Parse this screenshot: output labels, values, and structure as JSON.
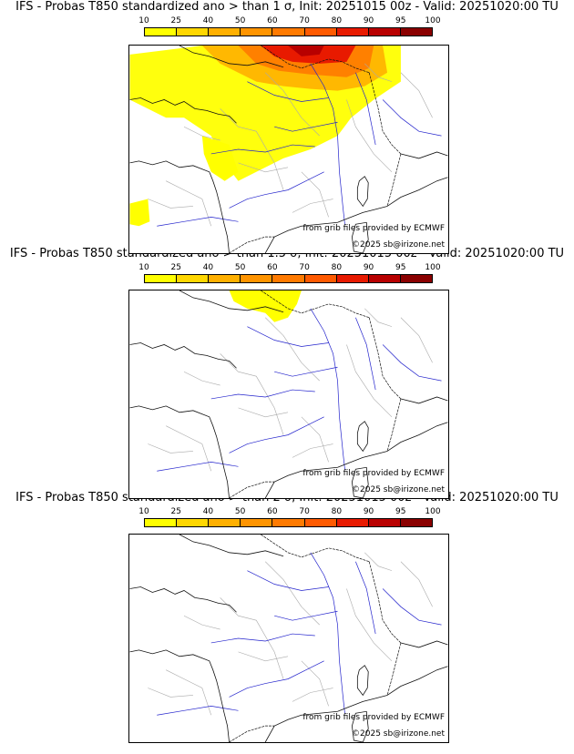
{
  "panels": [
    {
      "title": "IFS - Probas T850  standardized ano > than 1 σ, Init: 20251015 00z - Valid: 20251020:00 TU",
      "source": "from grib files provided by ECMWF",
      "copyright": "©2025 sb@irizone.net"
    },
    {
      "title": "IFS - Probas T850  standardized ano > than 1.5 σ, Init: 20251015 00z - Valid: 20251020:00 TU",
      "source": "from grib files provided by ECMWF",
      "copyright": "©2025 sb@irizone.net"
    },
    {
      "title": "IFS - Probas T850  standardized ano > than 2 σ, Init: 20251015 00z - Valid: 20251020:00 TU",
      "source": "from grib files provided by ECMWF",
      "copyright": "©2025 sb@irizone.net"
    }
  ],
  "colorbar": {
    "ticks": [
      "10",
      "25",
      "40",
      "50",
      "60",
      "70",
      "80",
      "90",
      "95",
      "100"
    ],
    "colors": [
      "#ffff00",
      "#ffd700",
      "#ffb000",
      "#ff9400",
      "#ff7a00",
      "#ff5a00",
      "#e81a00",
      "#b80000",
      "#8a0000"
    ]
  },
  "colors": {
    "border": "#000000",
    "rivers": "#2222cc",
    "admin": "#aaaaaa",
    "coast": "#111111"
  }
}
